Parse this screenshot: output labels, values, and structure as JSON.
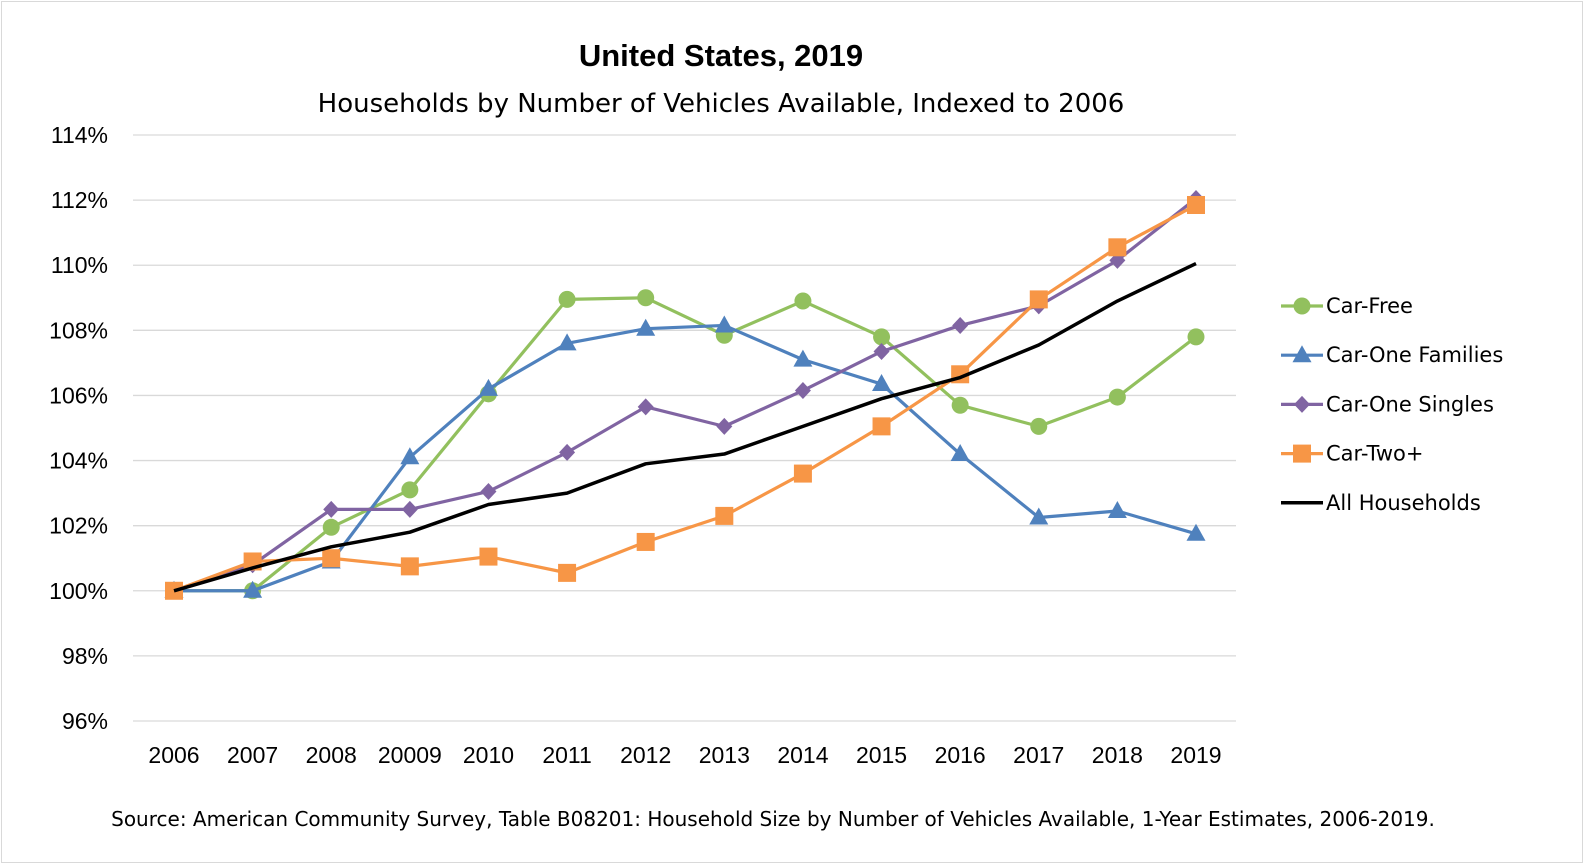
{
  "chart_data": {
    "type": "line",
    "title": "United States, 2019",
    "subtitle": "Households by Number of Vehicles Available, Indexed to 2006",
    "categories": [
      "2006",
      "2007",
      "2008",
      "20009",
      "2010",
      "2011",
      "2012",
      "2013",
      "2014",
      "2015",
      "2016",
      "2017",
      "2018",
      "2019"
    ],
    "ylim": [
      96,
      114
    ],
    "yticks": [
      96,
      98,
      100,
      102,
      104,
      106,
      108,
      110,
      112,
      114
    ],
    "ytick_labels": [
      "96%",
      "98%",
      "100%",
      "102%",
      "104%",
      "106%",
      "108%",
      "110%",
      "112%",
      "114%"
    ],
    "grid": true,
    "legend_position": "right",
    "series": [
      {
        "name": "Car-Free",
        "color": "#92c05e",
        "marker": "circle",
        "values": [
          100.0,
          100.0,
          101.95,
          103.1,
          106.05,
          108.95,
          109.0,
          107.85,
          108.9,
          107.8,
          105.7,
          105.05,
          105.95,
          107.8
        ]
      },
      {
        "name": "Car-One Families",
        "color": "#4f81bd",
        "marker": "triangle",
        "values": [
          100.0,
          100.0,
          100.9,
          104.1,
          106.2,
          107.6,
          108.05,
          108.15,
          107.1,
          106.35,
          104.2,
          102.25,
          102.45,
          101.75
        ]
      },
      {
        "name": "Car-One Singles",
        "color": "#8064a2",
        "marker": "diamond",
        "values": [
          100.0,
          100.8,
          102.5,
          102.5,
          103.05,
          104.25,
          105.65,
          105.05,
          106.15,
          107.35,
          108.15,
          108.75,
          110.15,
          112.05
        ]
      },
      {
        "name": "Car-Two+",
        "color": "#f79646",
        "marker": "square",
        "values": [
          100.0,
          100.9,
          101.0,
          100.75,
          101.05,
          100.55,
          101.5,
          102.3,
          103.6,
          105.05,
          106.65,
          108.95,
          110.55,
          111.85
        ]
      },
      {
        "name": "All Households",
        "color": "#000000",
        "marker": "none",
        "values": [
          100.0,
          100.7,
          101.35,
          101.8,
          102.65,
          103.0,
          103.9,
          104.2,
          105.05,
          105.9,
          106.55,
          107.55,
          108.9,
          110.05
        ]
      }
    ],
    "source": "Source: American Community Survey, Table B08201: Household Size by Number of Vehicles Available, 1-Year Estimates, 2006-2019."
  }
}
